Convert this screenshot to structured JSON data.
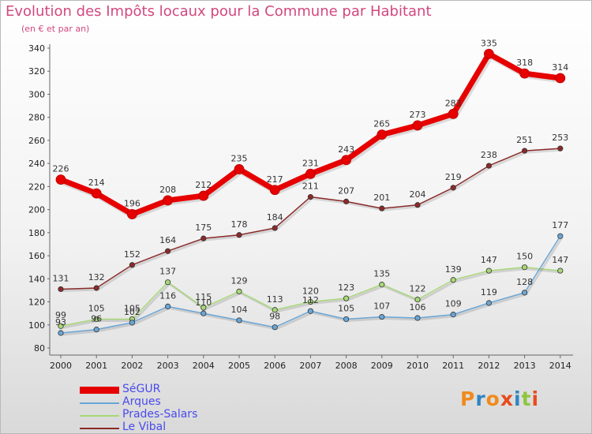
{
  "title": "Evolution des Impôts locaux pour la Commune par Habitant",
  "subtitle": "(en € et par an)",
  "logo": {
    "text": "Proxiti",
    "colors": [
      "#f08a1e",
      "#2e86c1",
      "#f08a1e",
      "#e84b1c",
      "#2e86c1",
      "#8cc63f",
      "#e84b1c"
    ]
  },
  "chart_data": {
    "type": "line",
    "x": [
      2000,
      2001,
      2002,
      2003,
      2004,
      2005,
      2006,
      2007,
      2008,
      2009,
      2010,
      2011,
      2012,
      2013,
      2014
    ],
    "ylim": [
      80,
      340
    ],
    "yticks": [
      80,
      100,
      120,
      140,
      160,
      180,
      200,
      220,
      240,
      260,
      280,
      300,
      320,
      340
    ],
    "grid": false,
    "legend_position": "bottom-left",
    "series": [
      {
        "name": "SéGUR",
        "color": "#e60000",
        "width": 7,
        "values": [
          226,
          214,
          196,
          208,
          212,
          235,
          217,
          231,
          243,
          265,
          273,
          283,
          335,
          318,
          314
        ],
        "labels": [
          "226",
          "214",
          "196",
          "208",
          "212",
          "235",
          "217",
          "231",
          "243",
          "265",
          "273",
          "283",
          "335",
          "318",
          "314"
        ]
      },
      {
        "name": "Arques",
        "color": "#6aa6d6",
        "width": 1.5,
        "values": [
          93,
          96,
          102,
          116,
          110,
          104,
          98,
          112,
          105,
          107,
          106,
          109,
          119,
          128,
          177
        ],
        "labels": [
          "93",
          "96",
          "102",
          "116",
          "110",
          "104",
          "98",
          "112",
          "105",
          "107",
          "106",
          "109",
          "119",
          "128",
          "177"
        ]
      },
      {
        "name": "Prades-Salars",
        "color": "#a8d878",
        "width": 1.5,
        "values": [
          99,
          105,
          105,
          137,
          115,
          129,
          113,
          120,
          123,
          135,
          122,
          139,
          147,
          150,
          147
        ],
        "labels": [
          "99",
          "105",
          "105",
          "137",
          "115",
          "129",
          "113",
          "120",
          "123",
          "135",
          "122",
          "139",
          "147",
          "150",
          "147"
        ]
      },
      {
        "name": "Le Vibal",
        "color": "#8b2a2a",
        "width": 1.5,
        "values": [
          131,
          132,
          152,
          164,
          175,
          178,
          184,
          211,
          207,
          201,
          204,
          219,
          238,
          251,
          253
        ],
        "labels": [
          "131",
          "132",
          "152",
          "164",
          "175",
          "178",
          "184",
          "211",
          "207",
          "201",
          "204",
          "219",
          "238",
          "251",
          "253"
        ]
      }
    ]
  }
}
